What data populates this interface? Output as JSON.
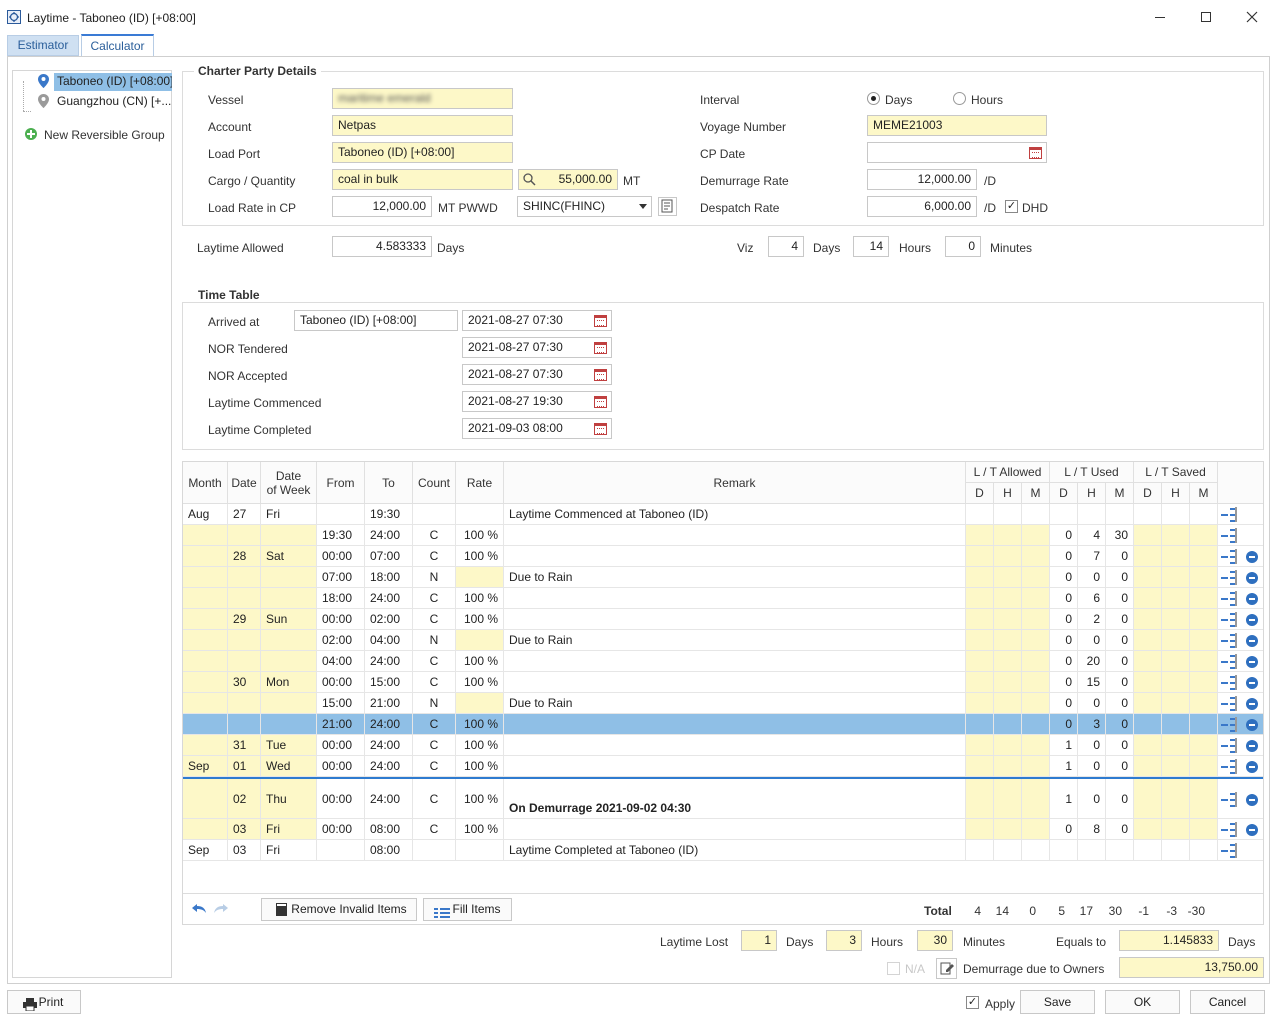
{
  "window": {
    "title": "Laytime - Taboneo (ID) [+08:00]"
  },
  "tabs": [
    "Estimator",
    "Calculator"
  ],
  "tree": {
    "items": [
      "Taboneo (ID) [+08:00]",
      "Guangzhou (CN) [+..."
    ],
    "new_group": "New Reversible Group"
  },
  "cp": {
    "title": "Charter Party Details",
    "vessel_label": "Vessel",
    "vessel_value": "maritime emerald",
    "account_label": "Account",
    "account_value": "Netpas",
    "loadport_label": "Load Port",
    "loadport_value": "Taboneo (ID) [+08:00]",
    "cargo_label": "Cargo / Quantity",
    "cargo_value": "coal in bulk",
    "qty_value": "55,000.00",
    "qty_unit": "MT",
    "loadrate_label": "Load Rate in CP",
    "loadrate_value": "12,000.00",
    "loadrate_unit": "MT PWWD",
    "term_value": "SHINC(FHINC)",
    "interval_label": "Interval",
    "interval_days": "Days",
    "interval_hours": "Hours",
    "voyage_label": "Voyage Number",
    "voyage_value": "MEME21003",
    "cpdate_label": "CP Date",
    "cpdate_value": "",
    "dem_label": "Demurrage Rate",
    "dem_value": "12,000.00",
    "dem_unit": "/D",
    "desp_label": "Despatch Rate",
    "desp_value": "6,000.00",
    "desp_unit": "/D",
    "dhd_label": "DHD"
  },
  "allowed": {
    "label": "Laytime Allowed",
    "value": "4.583333",
    "unit": "Days",
    "viz": "Viz",
    "d": "4",
    "d_unit": "Days",
    "h": "14",
    "h_unit": "Hours",
    "m": "0",
    "m_unit": "Minutes"
  },
  "timetable": {
    "title": "Time Table",
    "arrived_label": "Arrived at",
    "arrived_port": "Taboneo (ID) [+08:00]",
    "arrived_time": "2021-08-27 07:30",
    "nor_t_label": "NOR Tendered",
    "nor_t": "2021-08-27 07:30",
    "nor_a_label": "NOR Accepted",
    "nor_a": "2021-08-27 07:30",
    "comm_label": "Laytime Commenced",
    "comm": "2021-08-27 19:30",
    "compl_label": "Laytime Completed",
    "compl": "2021-09-03 08:00"
  },
  "grid": {
    "headers": {
      "month": "Month",
      "date": "Date",
      "dow1": "Date",
      "dow2": "of Week",
      "from": "From",
      "to": "To",
      "count": "Count",
      "rate": "Rate",
      "remark": "Remark",
      "allowed": "L / T Allowed",
      "used": "L / T Used",
      "saved": "L / T Saved",
      "d": "D",
      "h": "H",
      "m": "M"
    },
    "rows": [
      {
        "month": "Aug",
        "date": "27",
        "dow": "Fri",
        "from": "",
        "to": "19:30",
        "count": "",
        "rate": "",
        "remark": "Laytime Commenced at Taboneo (ID)",
        "ud": "",
        "uh": "",
        "um": "",
        "kind": "event"
      },
      {
        "month": "",
        "date": "",
        "dow": "",
        "from": "19:30",
        "to": "24:00",
        "count": "C",
        "rate": "100 %",
        "remark": "",
        "ud": "0",
        "uh": "4",
        "um": "30",
        "kind": "first"
      },
      {
        "month": "",
        "date": "28",
        "dow": "Sat",
        "from": "00:00",
        "to": "07:00",
        "count": "C",
        "rate": "100 %",
        "remark": "",
        "ud": "0",
        "uh": "7",
        "um": "0",
        "kind": "norm"
      },
      {
        "month": "",
        "date": "",
        "dow": "",
        "from": "07:00",
        "to": "18:00",
        "count": "N",
        "rate": "",
        "remark": "Due to Rain",
        "ud": "0",
        "uh": "0",
        "um": "0",
        "kind": "norm"
      },
      {
        "month": "",
        "date": "",
        "dow": "",
        "from": "18:00",
        "to": "24:00",
        "count": "C",
        "rate": "100 %",
        "remark": "",
        "ud": "0",
        "uh": "6",
        "um": "0",
        "kind": "norm"
      },
      {
        "month": "",
        "date": "29",
        "dow": "Sun",
        "from": "00:00",
        "to": "02:00",
        "count": "C",
        "rate": "100 %",
        "remark": "",
        "ud": "0",
        "uh": "2",
        "um": "0",
        "kind": "norm"
      },
      {
        "month": "",
        "date": "",
        "dow": "",
        "from": "02:00",
        "to": "04:00",
        "count": "N",
        "rate": "",
        "remark": "Due to Rain",
        "ud": "0",
        "uh": "0",
        "um": "0",
        "kind": "norm"
      },
      {
        "month": "",
        "date": "",
        "dow": "",
        "from": "04:00",
        "to": "24:00",
        "count": "C",
        "rate": "100 %",
        "remark": "",
        "ud": "0",
        "uh": "20",
        "um": "0",
        "kind": "norm"
      },
      {
        "month": "",
        "date": "30",
        "dow": "Mon",
        "from": "00:00",
        "to": "15:00",
        "count": "C",
        "rate": "100 %",
        "remark": "",
        "ud": "0",
        "uh": "15",
        "um": "0",
        "kind": "norm"
      },
      {
        "month": "",
        "date": "",
        "dow": "",
        "from": "15:00",
        "to": "21:00",
        "count": "N",
        "rate": "",
        "remark": "Due to Rain",
        "ud": "0",
        "uh": "0",
        "um": "0",
        "kind": "norm"
      },
      {
        "month": "",
        "date": "",
        "dow": "",
        "from": "21:00",
        "to": "24:00",
        "count": "C",
        "rate": "100 %",
        "remark": "",
        "ud": "0",
        "uh": "3",
        "um": "0",
        "kind": "sel"
      },
      {
        "month": "",
        "date": "31",
        "dow": "Tue",
        "from": "00:00",
        "to": "24:00",
        "count": "C",
        "rate": "100 %",
        "remark": "",
        "ud": "1",
        "uh": "0",
        "um": "0",
        "kind": "norm"
      },
      {
        "month": "Sep",
        "date": "01",
        "dow": "Wed",
        "from": "00:00",
        "to": "24:00",
        "count": "C",
        "rate": "100 %",
        "remark": "",
        "ud": "1",
        "uh": "0",
        "um": "0",
        "kind": "norm"
      },
      {
        "month": "",
        "date": "02",
        "dow": "Thu",
        "from": "00:00",
        "to": "24:00",
        "count": "C",
        "rate": "100 %",
        "remark": "On Demurrage 2021-09-02 04:30",
        "ud": "1",
        "uh": "0",
        "um": "0",
        "kind": "tall"
      },
      {
        "month": "",
        "date": "03",
        "dow": "Fri",
        "from": "00:00",
        "to": "08:00",
        "count": "C",
        "rate": "100 %",
        "remark": "",
        "ud": "0",
        "uh": "8",
        "um": "0",
        "kind": "norm"
      },
      {
        "month": "Sep",
        "date": "03",
        "dow": "Fri",
        "from": "",
        "to": "08:00",
        "count": "",
        "rate": "",
        "remark": "Laytime Completed at Taboneo (ID)",
        "ud": "",
        "uh": "",
        "um": "",
        "kind": "eventend"
      }
    ],
    "remove_invalid": "Remove Invalid Items",
    "fill_items": "Fill Items",
    "total_label": "Total",
    "totals": [
      "4",
      "14",
      "0",
      "5",
      "17",
      "30",
      "-1",
      "-3",
      "-30"
    ]
  },
  "footer": {
    "lost_label": "Laytime Lost",
    "lost_d": "1",
    "lost_d_unit": "Days",
    "lost_h": "3",
    "lost_h_unit": "Hours",
    "lost_m": "30",
    "lost_m_unit": "Minutes",
    "equals_label": "Equals to",
    "equals_value": "1.145833",
    "equals_unit": "Days",
    "na_label": "N/A",
    "dem_due_label": "Demurrage due to Owners",
    "dem_due_value": "13,750.00"
  },
  "buttons": {
    "print": "Print",
    "apply": "Apply",
    "save": "Save",
    "ok": "OK",
    "cancel": "Cancel"
  }
}
